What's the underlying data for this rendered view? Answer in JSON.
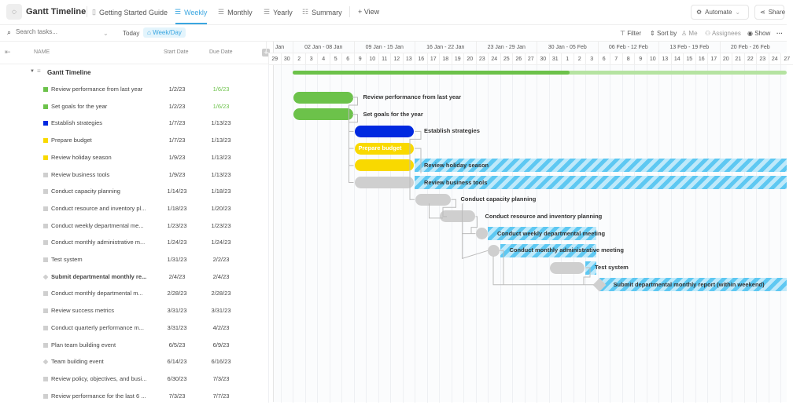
{
  "app": {
    "title": "Gantt Timeline"
  },
  "tabs": [
    {
      "label": "Getting Started Guide",
      "icon": "doc-icon"
    },
    {
      "label": "Weekly",
      "icon": "gantt-icon",
      "active": true
    },
    {
      "label": "Monthly",
      "icon": "gantt-icon"
    },
    {
      "label": "Yearly",
      "icon": "gantt-icon"
    },
    {
      "label": "Summary",
      "icon": "list-icon"
    }
  ],
  "add_view": "+ View",
  "actions": {
    "automate": "Automate",
    "share": "Share"
  },
  "toolbar": {
    "search_placeholder": "Search tasks...",
    "today": "Today",
    "scale": "Week/Day",
    "filter": "Filter",
    "sort": "Sort by",
    "me": "Me",
    "assignees": "Assignees",
    "show": "Show",
    "more": "···"
  },
  "columns": {
    "name": "NAME",
    "start": "Start Date",
    "due": "Due Date"
  },
  "group": {
    "title": "Gantt Timeline"
  },
  "colors": {
    "accent": "#3aa6e0",
    "green": "#6cc24a",
    "blue": "#0029e0",
    "yellow": "#f9d900",
    "gray": "#cfcfcf",
    "overdue_hatch": "#5ec8f2"
  },
  "progress": {
    "fraction": 0.56
  },
  "timeline": {
    "weeks": [
      "Jan",
      "02 Jan - 08 Jan",
      "09 Jan - 15 Jan",
      "16 Jan - 22 Jan",
      "23 Jan - 29 Jan",
      "30 Jan - 05 Feb",
      "06 Feb - 12 Feb",
      "13 Feb - 19 Feb",
      "20 Feb - 26 Feb"
    ],
    "days": [
      "29",
      "30",
      "2",
      "3",
      "4",
      "5",
      "6",
      "9",
      "10",
      "11",
      "12",
      "13",
      "16",
      "17",
      "18",
      "19",
      "20",
      "23",
      "24",
      "25",
      "26",
      "27",
      "30",
      "31",
      "1",
      "2",
      "3",
      "6",
      "7",
      "8",
      "9",
      "10",
      "13",
      "14",
      "15",
      "16",
      "17",
      "20",
      "21",
      "22",
      "23",
      "24",
      "27"
    ]
  },
  "tasks": [
    {
      "name": "Review performance from last year",
      "label": "Review performance from last year",
      "start": "1/2/23",
      "due": "1/6/23",
      "color": "#6cc24a",
      "due_color": "#6cc24a",
      "start_iso": "2023-01-02",
      "end_iso": "2023-01-06"
    },
    {
      "name": "Set goals for the year",
      "label": "Set goals for the year",
      "start": "1/2/23",
      "due": "1/6/23",
      "color": "#6cc24a",
      "due_color": "#6cc24a",
      "start_iso": "2023-01-02",
      "end_iso": "2023-01-06"
    },
    {
      "name": "Establish strategies",
      "label": "Establish strategies",
      "start": "1/7/23",
      "due": "1/13/23",
      "color": "#0029e0",
      "start_iso": "2023-01-07",
      "end_iso": "2023-01-13"
    },
    {
      "name": "Prepare budget",
      "label": "Prepare budget",
      "start": "1/7/23",
      "due": "1/13/23",
      "color": "#f9d900",
      "inside": true,
      "start_iso": "2023-01-07",
      "end_iso": "2023-01-13"
    },
    {
      "name": "Review holiday season",
      "label": "Review holiday season",
      "start": "1/9/23",
      "due": "1/13/23",
      "color": "#f9d900",
      "overdue": true,
      "start_iso": "2023-01-09",
      "end_iso": "2023-01-13"
    },
    {
      "name": "Review business tools",
      "label": "Review business tools",
      "start": "1/9/23",
      "due": "1/13/23",
      "color": "#cfcfcf",
      "overdue": true,
      "start_iso": "2023-01-09",
      "end_iso": "2023-01-13"
    },
    {
      "name": "Conduct capacity planning",
      "label": "Conduct capacity planning",
      "start": "1/14/23",
      "due": "1/18/23",
      "color": "#cfcfcf",
      "start_iso": "2023-01-14",
      "end_iso": "2023-01-18"
    },
    {
      "name": "Conduct resource and inventory pl...",
      "label": "Conduct resource and inventory planning",
      "start": "1/18/23",
      "due": "1/20/23",
      "color": "#cfcfcf",
      "start_iso": "2023-01-18",
      "end_iso": "2023-01-20"
    },
    {
      "name": "Conduct weekly departmental me...",
      "label": "Conduct weekly departmental meeting",
      "start": "1/23/23",
      "due": "1/23/23",
      "color": "#cfcfcf",
      "overdue": true,
      "start_iso": "2023-01-23",
      "end_iso": "2023-01-23"
    },
    {
      "name": "Conduct monthly administrative m...",
      "label": "Conduct monthly administrative meeting",
      "start": "1/24/23",
      "due": "1/24/23",
      "color": "#cfcfcf",
      "overdue": true,
      "start_iso": "2023-01-24",
      "end_iso": "2023-01-24"
    },
    {
      "name": "Test system",
      "label": "Test system",
      "start": "1/31/23",
      "due": "2/2/23",
      "color": "#cfcfcf",
      "overdue": true,
      "start_iso": "2023-01-31",
      "end_iso": "2023-02-02"
    },
    {
      "name": "Submit departmental monthly re...",
      "label": "Submit departmental monthly report (within weekend)",
      "start": "2/4/23",
      "due": "2/4/23",
      "color": "#cfcfcf",
      "milestone": true,
      "bold": true,
      "overdue": true,
      "start_iso": "2023-02-04",
      "end_iso": "2023-02-04"
    },
    {
      "name": "Conduct monthly departmental m...",
      "start": "2/28/23",
      "due": "2/28/23",
      "color": "#cfcfcf"
    },
    {
      "name": "Review success metrics",
      "start": "3/31/23",
      "due": "3/31/23",
      "color": "#cfcfcf"
    },
    {
      "name": "Conduct quarterly performance m...",
      "start": "3/31/23",
      "due": "4/2/23",
      "color": "#cfcfcf"
    },
    {
      "name": "Plan team building event",
      "start": "6/5/23",
      "due": "6/9/23",
      "color": "#cfcfcf"
    },
    {
      "name": "Team building event",
      "start": "6/14/23",
      "due": "6/16/23",
      "color": "#cfcfcf",
      "milestone": true
    },
    {
      "name": "Review policy, objectives, and busi...",
      "start": "6/30/23",
      "due": "7/3/23",
      "color": "#cfcfcf"
    },
    {
      "name": "Review performance for the last 6 ...",
      "start": "7/3/23",
      "due": "7/7/23",
      "color": "#cfcfcf"
    }
  ]
}
